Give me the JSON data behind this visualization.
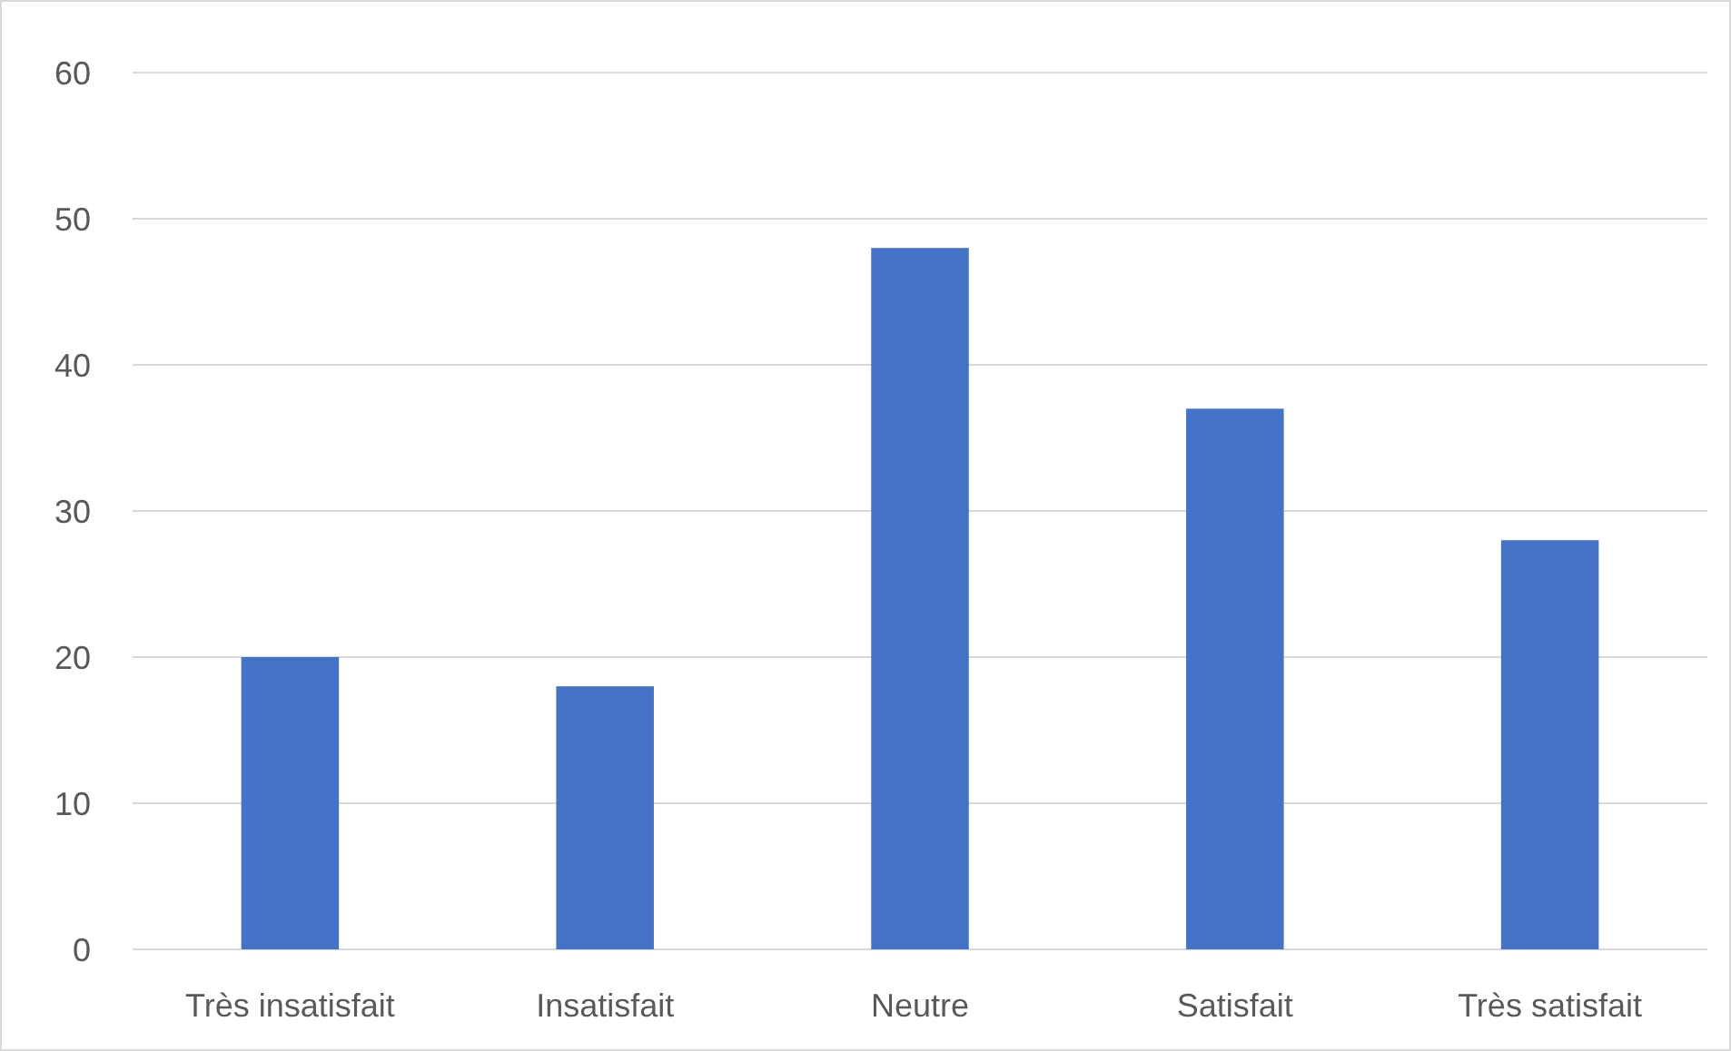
{
  "chart_data": {
    "type": "bar",
    "categories": [
      "Très insatisfait",
      "Insatisfait",
      "Neutre",
      "Satisfait",
      "Très satisfait"
    ],
    "values": [
      20,
      18,
      48,
      37,
      28
    ],
    "color": "#4472c4",
    "ylim": [
      0,
      60
    ],
    "yticks": [
      0,
      10,
      20,
      30,
      40,
      50,
      60
    ],
    "grid": "y"
  }
}
